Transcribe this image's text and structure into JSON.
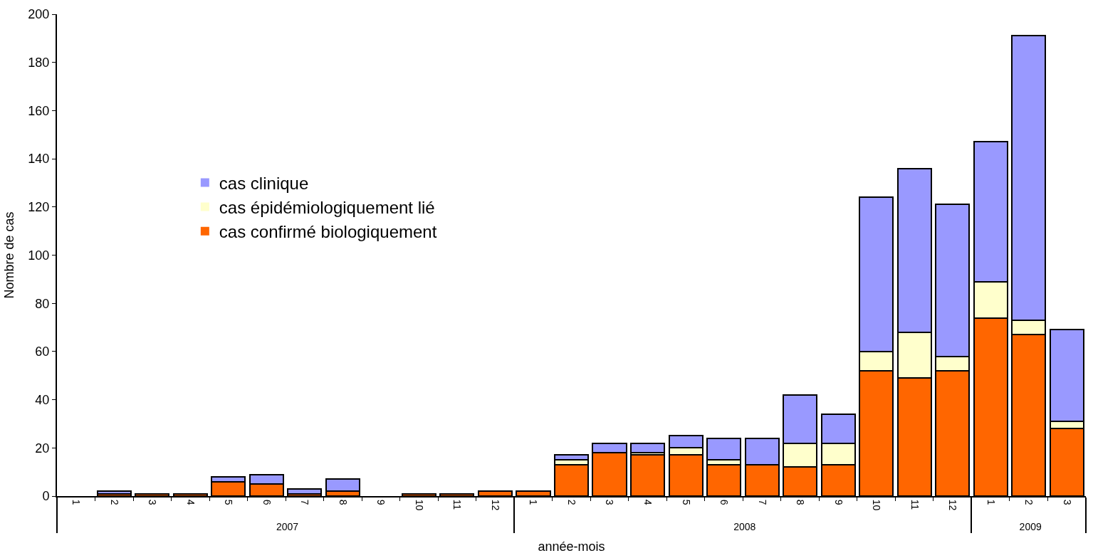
{
  "chart_data": {
    "type": "bar",
    "stacked": true,
    "xlabel": "année-mois",
    "ylabel": "Nombre de cas",
    "categories": [
      "1",
      "2",
      "3",
      "4",
      "5",
      "6",
      "7",
      "8",
      "9",
      "10",
      "11",
      "12",
      "1",
      "2",
      "3",
      "4",
      "5",
      "6",
      "7",
      "8",
      "9",
      "10",
      "11",
      "12",
      "1",
      "2",
      "3"
    ],
    "annotations": [
      "2007",
      "2008",
      "2009"
    ],
    "series": [
      {
        "name": "cas confirmé biologiquement",
        "color": "#ff6600",
        "values": [
          0,
          1,
          1,
          1,
          6,
          5,
          1,
          2,
          0,
          1,
          1,
          2,
          2,
          13,
          18,
          17,
          17,
          13,
          13,
          12,
          13,
          52,
          49,
          52,
          74,
          67,
          28
        ]
      },
      {
        "name": "cas épidémiologiquement lié",
        "color": "#ffffcc",
        "values": [
          0,
          0,
          0,
          0,
          0,
          0,
          0,
          0,
          0,
          0,
          0,
          0,
          0,
          2,
          0,
          1,
          3,
          2,
          0,
          10,
          9,
          8,
          19,
          6,
          15,
          6,
          3
        ]
      },
      {
        "name": "cas clinique",
        "color": "#9999ff",
        "values": [
          0,
          1,
          0,
          0,
          2,
          4,
          2,
          5,
          0,
          0,
          0,
          0,
          0,
          2,
          4,
          4,
          5,
          9,
          11,
          20,
          12,
          64,
          68,
          63,
          58,
          118,
          38
        ]
      }
    ],
    "ylim": [
      0,
      200
    ],
    "yticks": [
      0,
      20,
      40,
      60,
      80,
      100,
      120,
      140,
      160,
      180,
      200
    ],
    "grid": false,
    "legend": "left"
  }
}
